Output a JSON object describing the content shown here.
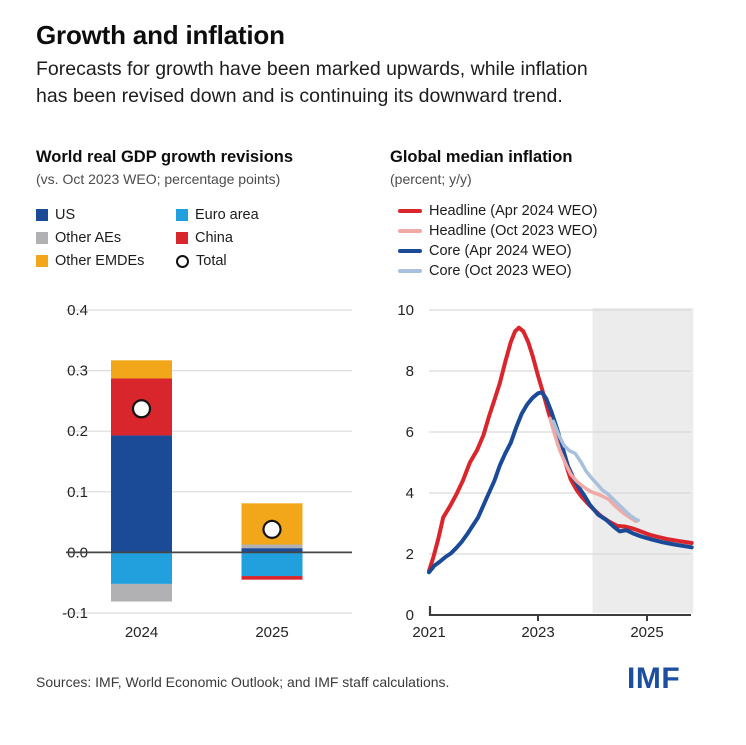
{
  "header": {
    "title": "Growth and inflation",
    "subtitle_lines": [
      "Forecasts for growth have been marked upwards, while inflation",
      "has been revised down and is continuing its downward trend."
    ]
  },
  "left_panel": {
    "title": "World real GDP growth revisions",
    "subtitle": "(vs. Oct 2023 WEO; percentage points)",
    "legend_col1": [
      {
        "label": "US",
        "color": "#1b4a97"
      },
      {
        "label": "Other AEs",
        "color": "#b1b1b3"
      },
      {
        "label": "Other EMDEs",
        "color": "#f2a71b"
      }
    ],
    "legend_col2": [
      {
        "label": "Euro area",
        "color": "#22a0dd"
      },
      {
        "label": "China",
        "color": "#d9252c"
      },
      {
        "label": "Total",
        "marker": "circle"
      }
    ]
  },
  "right_panel": {
    "title": "Global median inflation",
    "subtitle": "(percent; y/y)",
    "legend": [
      {
        "label": "Headline (Apr 2024 WEO)",
        "color": "#d9252c"
      },
      {
        "label": "Headline (Oct 2023 WEO)",
        "color": "#f0a9a5"
      },
      {
        "label": "Core (Apr 2024 WEO)",
        "color": "#1b4a97"
      },
      {
        "label": "Core (Oct 2023 WEO)",
        "color": "#a9c0dc"
      }
    ]
  },
  "footer": {
    "sources": "Sources: IMF, World Economic Outlook; and IMF staff calculations.",
    "logo": "IMF",
    "logo_color": "#1d4fa1"
  },
  "chart_data": [
    {
      "type": "bar",
      "title": "World real GDP growth revisions",
      "subtitle": "(vs. Oct 2023 WEO; percentage points)",
      "categories": [
        "2024",
        "2025"
      ],
      "ylim": [
        -0.1,
        0.4
      ],
      "yticks": [
        0.4,
        0.3,
        0.2,
        0.1,
        0,
        -0.1
      ],
      "ytick_labels": [
        "0.4",
        "0.3",
        "0.2",
        "0.1",
        "0.0",
        "-0.1"
      ],
      "grid_color": "#dcdcdc",
      "zero_line_color": "#454545",
      "stacking": "positive values stack upward from zero, negative downward, in series order",
      "series": [
        {
          "name": "US",
          "color": "#1b4a97",
          "values": [
            0.193,
            0.007
          ]
        },
        {
          "name": "Euro area",
          "color": "#22a0dd",
          "values": [
            -0.052,
            -0.039
          ]
        },
        {
          "name": "Other AEs",
          "color": "#b1b1b3",
          "values": [
            -0.029,
            0.006
          ]
        },
        {
          "name": "China",
          "color": "#d9252c",
          "values": [
            0.094,
            -0.006
          ]
        },
        {
          "name": "Other EMDEs",
          "color": "#f2a71b",
          "values": [
            0.03,
            0.068
          ]
        }
      ],
      "total_markers": {
        "name": "Total",
        "values": [
          0.237,
          0.038
        ],
        "marker": "white circle"
      }
    },
    {
      "type": "line",
      "title": "Global median inflation",
      "subtitle": "(percent; y/y)",
      "xlim": [
        2021,
        2025.85
      ],
      "ylim": [
        0,
        10
      ],
      "yticks": [
        10,
        8,
        6,
        4,
        2,
        0
      ],
      "ytick_labels": [
        "10",
        "8",
        "6",
        "4",
        "2",
        "0"
      ],
      "xticks": [
        2021,
        2023,
        2025
      ],
      "xtick_labels": [
        "2021",
        "2023",
        "2025"
      ],
      "grid_color": "#d9d9d9",
      "axis_color": "#3c3c3c",
      "forecast_shade_from": 2024,
      "forecast_shade_to": 2025.85,
      "shade_color": "#ececec",
      "series": [
        {
          "name": "Headline (Apr 2024 WEO)",
          "color": "#d9252c",
          "width": 4,
          "points": [
            [
              2021,
              1.45
            ],
            [
              2021.08,
              1.9
            ],
            [
              2021.17,
              2.5
            ],
            [
              2021.26,
              3.2
            ],
            [
              2021.38,
              3.55
            ],
            [
              2021.5,
              3.95
            ],
            [
              2021.62,
              4.4
            ],
            [
              2021.75,
              5.0
            ],
            [
              2021.88,
              5.4
            ],
            [
              2022,
              5.9
            ],
            [
              2022.1,
              6.5
            ],
            [
              2022.2,
              7.05
            ],
            [
              2022.3,
              7.6
            ],
            [
              2022.4,
              8.3
            ],
            [
              2022.5,
              8.95
            ],
            [
              2022.58,
              9.3
            ],
            [
              2022.65,
              9.42
            ],
            [
              2022.73,
              9.3
            ],
            [
              2022.82,
              8.95
            ],
            [
              2022.9,
              8.5
            ],
            [
              2023,
              7.85
            ],
            [
              2023.1,
              7.25
            ],
            [
              2023.2,
              6.6
            ],
            [
              2023.3,
              6.05
            ],
            [
              2023.4,
              5.55
            ],
            [
              2023.5,
              5.0
            ],
            [
              2023.6,
              4.45
            ],
            [
              2023.7,
              4.12
            ],
            [
              2023.8,
              3.88
            ],
            [
              2023.9,
              3.68
            ],
            [
              2024,
              3.5
            ],
            [
              2024.15,
              3.25
            ],
            [
              2024.3,
              3.07
            ],
            [
              2024.45,
              2.92
            ],
            [
              2024.6,
              2.9
            ],
            [
              2024.75,
              2.83
            ],
            [
              2024.9,
              2.73
            ],
            [
              2025.05,
              2.63
            ],
            [
              2025.2,
              2.56
            ],
            [
              2025.4,
              2.48
            ],
            [
              2025.6,
              2.42
            ],
            [
              2025.82,
              2.36
            ]
          ]
        },
        {
          "name": "Core (Apr 2024 WEO)",
          "color": "#1b4a97",
          "width": 4,
          "points": [
            [
              2021,
              1.4
            ],
            [
              2021.1,
              1.62
            ],
            [
              2021.2,
              1.75
            ],
            [
              2021.3,
              1.9
            ],
            [
              2021.4,
              2.02
            ],
            [
              2021.5,
              2.2
            ],
            [
              2021.6,
              2.4
            ],
            [
              2021.7,
              2.65
            ],
            [
              2021.8,
              2.92
            ],
            [
              2021.9,
              3.2
            ],
            [
              2022,
              3.6
            ],
            [
              2022.1,
              4.0
            ],
            [
              2022.2,
              4.4
            ],
            [
              2022.3,
              4.9
            ],
            [
              2022.4,
              5.3
            ],
            [
              2022.5,
              5.65
            ],
            [
              2022.6,
              6.15
            ],
            [
              2022.7,
              6.6
            ],
            [
              2022.8,
              6.9
            ],
            [
              2022.9,
              7.12
            ],
            [
              2023,
              7.27
            ],
            [
              2023.07,
              7.3
            ],
            [
              2023.15,
              7.1
            ],
            [
              2023.25,
              6.65
            ],
            [
              2023.35,
              6.1
            ],
            [
              2023.45,
              5.5
            ],
            [
              2023.55,
              4.88
            ],
            [
              2023.65,
              4.5
            ],
            [
              2023.75,
              4.18
            ],
            [
              2023.85,
              3.92
            ],
            [
              2023.95,
              3.62
            ],
            [
              2024.1,
              3.3
            ],
            [
              2024.25,
              3.12
            ],
            [
              2024.4,
              2.88
            ],
            [
              2024.5,
              2.74
            ],
            [
              2024.62,
              2.78
            ],
            [
              2024.75,
              2.67
            ],
            [
              2024.9,
              2.57
            ],
            [
              2025.1,
              2.47
            ],
            [
              2025.3,
              2.38
            ],
            [
              2025.5,
              2.31
            ],
            [
              2025.82,
              2.22
            ]
          ]
        },
        {
          "name": "Headline (Oct 2023 WEO)",
          "color": "#f0a9a5",
          "width": 3.5,
          "points": [
            [
              2023.22,
              6.45
            ],
            [
              2023.3,
              5.95
            ],
            [
              2023.4,
              5.4
            ],
            [
              2023.5,
              4.98
            ],
            [
              2023.6,
              4.62
            ],
            [
              2023.7,
              4.4
            ],
            [
              2023.8,
              4.25
            ],
            [
              2023.9,
              4.12
            ],
            [
              2024,
              4.02
            ],
            [
              2024.1,
              3.96
            ],
            [
              2024.2,
              3.88
            ],
            [
              2024.3,
              3.79
            ],
            [
              2024.4,
              3.6
            ],
            [
              2024.5,
              3.44
            ],
            [
              2024.6,
              3.3
            ],
            [
              2024.7,
              3.18
            ],
            [
              2024.8,
              3.07
            ]
          ]
        },
        {
          "name": "Core (Oct 2023 WEO)",
          "color": "#a9c0dc",
          "width": 3.5,
          "points": [
            [
              2023.28,
              6.35
            ],
            [
              2023.38,
              5.9
            ],
            [
              2023.48,
              5.55
            ],
            [
              2023.58,
              5.38
            ],
            [
              2023.68,
              5.3
            ],
            [
              2023.78,
              5.04
            ],
            [
              2023.88,
              4.72
            ],
            [
              2023.98,
              4.5
            ],
            [
              2024.08,
              4.3
            ],
            [
              2024.18,
              4.1
            ],
            [
              2024.28,
              3.97
            ],
            [
              2024.38,
              3.8
            ],
            [
              2024.48,
              3.62
            ],
            [
              2024.58,
              3.45
            ],
            [
              2024.68,
              3.28
            ],
            [
              2024.78,
              3.15
            ],
            [
              2024.84,
              3.1
            ]
          ]
        }
      ]
    }
  ]
}
